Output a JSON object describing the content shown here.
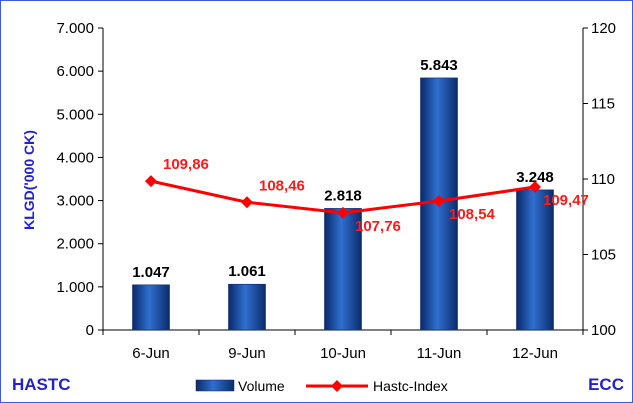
{
  "chart_data": {
    "type": "bar",
    "categories": [
      "6-Jun",
      "9-Jun",
      "10-Jun",
      "11-Jun",
      "12-Jun"
    ],
    "series": [
      {
        "name": "Volume",
        "type": "bar",
        "axis": "left",
        "values": [
          1.047,
          1.061,
          2.818,
          5.843,
          3.248
        ],
        "labels": [
          "1.047",
          "1.061",
          "2.818",
          "5.843",
          "3.248"
        ],
        "color": "#1f4e9e"
      },
      {
        "name": "Hastc-Index",
        "type": "line",
        "axis": "right",
        "values": [
          109.86,
          108.46,
          107.76,
          108.54,
          109.47
        ],
        "labels": [
          "109,86",
          "108,46",
          "107,76",
          "108,54",
          "109,47"
        ],
        "color": "#ff0000"
      }
    ],
    "ylabel": "KLGD('000 CK)",
    "ylim": [
      0,
      7
    ],
    "yticks": [
      "0",
      "1.000",
      "2.000",
      "3.000",
      "4.000",
      "5.000",
      "6.000",
      "7.000"
    ],
    "y2lim": [
      100,
      120
    ],
    "y2ticks": [
      "100",
      "105",
      "110",
      "115",
      "120"
    ],
    "legend_position": "bottom",
    "grid": false
  },
  "corner_left": "HASTC",
  "corner_right": "ECC"
}
